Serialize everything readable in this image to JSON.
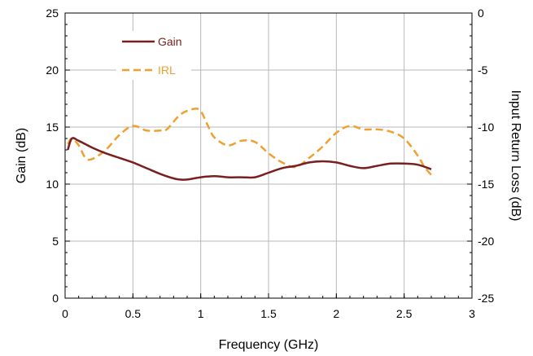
{
  "chart_data": {
    "type": "line",
    "xlabel": "Frequency (GHz)",
    "ylabel_left": "Gain (dB)",
    "ylabel_right": "Input Return Loss (dB)",
    "xlim": [
      0,
      3
    ],
    "ylim_left": [
      0,
      25
    ],
    "ylim_right": [
      -25,
      0
    ],
    "x_ticks": [
      "0",
      "0.5",
      "1",
      "1.5",
      "2",
      "2.5",
      "3"
    ],
    "y_ticks_left": [
      "0",
      "5",
      "10",
      "15",
      "20",
      "25"
    ],
    "y_ticks_right": [
      "-25",
      "-20",
      "-15",
      "-10",
      "-5",
      "0"
    ],
    "grid": true,
    "legend_position": "top-left",
    "series": [
      {
        "name": "Gain",
        "axis": "left",
        "color": "#7a1f1f",
        "style": "solid",
        "points": [
          [
            0.02,
            13.0
          ],
          [
            0.05,
            14.0
          ],
          [
            0.1,
            13.8
          ],
          [
            0.2,
            13.2
          ],
          [
            0.3,
            12.7
          ],
          [
            0.4,
            12.3
          ],
          [
            0.5,
            11.9
          ],
          [
            0.6,
            11.4
          ],
          [
            0.7,
            10.9
          ],
          [
            0.8,
            10.5
          ],
          [
            0.85,
            10.4
          ],
          [
            0.9,
            10.4
          ],
          [
            1.0,
            10.6
          ],
          [
            1.1,
            10.7
          ],
          [
            1.2,
            10.6
          ],
          [
            1.3,
            10.6
          ],
          [
            1.4,
            10.6
          ],
          [
            1.5,
            11.0
          ],
          [
            1.6,
            11.4
          ],
          [
            1.7,
            11.6
          ],
          [
            1.8,
            11.9
          ],
          [
            1.9,
            12.0
          ],
          [
            2.0,
            11.9
          ],
          [
            2.1,
            11.6
          ],
          [
            2.2,
            11.4
          ],
          [
            2.3,
            11.6
          ],
          [
            2.4,
            11.8
          ],
          [
            2.5,
            11.8
          ],
          [
            2.6,
            11.7
          ],
          [
            2.7,
            11.3
          ]
        ]
      },
      {
        "name": "IRL",
        "axis": "right",
        "color": "#f0a030",
        "style": "dashed",
        "points": [
          [
            0.02,
            -11.5
          ],
          [
            0.05,
            -11.0
          ],
          [
            0.1,
            -11.6
          ],
          [
            0.15,
            -12.7
          ],
          [
            0.2,
            -12.8
          ],
          [
            0.3,
            -12.0
          ],
          [
            0.4,
            -10.7
          ],
          [
            0.5,
            -9.9
          ],
          [
            0.6,
            -10.3
          ],
          [
            0.7,
            -10.3
          ],
          [
            0.75,
            -10.2
          ],
          [
            0.85,
            -8.9
          ],
          [
            0.95,
            -8.4
          ],
          [
            1.0,
            -8.6
          ],
          [
            1.05,
            -9.8
          ],
          [
            1.1,
            -10.9
          ],
          [
            1.2,
            -11.6
          ],
          [
            1.3,
            -11.2
          ],
          [
            1.4,
            -11.3
          ],
          [
            1.5,
            -12.3
          ],
          [
            1.6,
            -13.1
          ],
          [
            1.7,
            -13.5
          ],
          [
            1.8,
            -12.7
          ],
          [
            1.9,
            -11.7
          ],
          [
            2.0,
            -10.5
          ],
          [
            2.1,
            -9.9
          ],
          [
            2.2,
            -10.2
          ],
          [
            2.3,
            -10.2
          ],
          [
            2.4,
            -10.4
          ],
          [
            2.5,
            -11.0
          ],
          [
            2.6,
            -12.5
          ],
          [
            2.65,
            -13.5
          ],
          [
            2.7,
            -14.2
          ]
        ]
      }
    ]
  }
}
